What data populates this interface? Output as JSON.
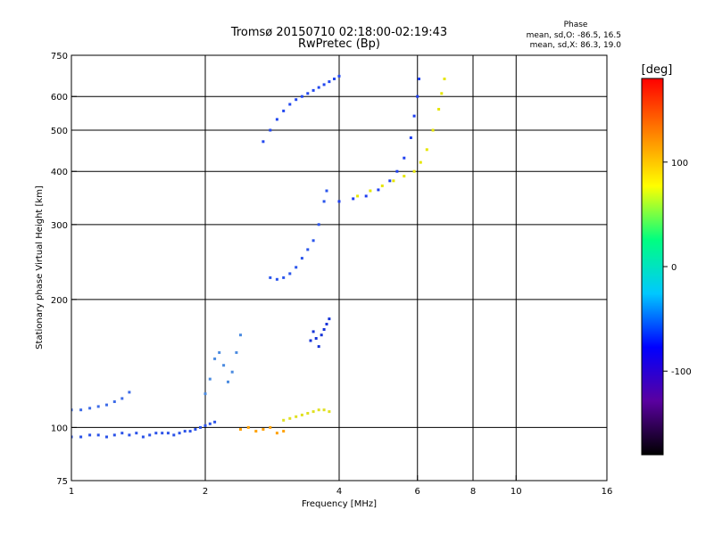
{
  "chart_data": {
    "type": "scatter",
    "title": "Tromsø 20150710 02:18:00-02:19:43",
    "subtitle": "RwPretec (Bp)",
    "stats_header": "Phase",
    "stats_line1": "mean, sd,O: -86.5, 16.5",
    "stats_line2": "mean, sd,X:  86.3, 19.0",
    "xlabel": "Frequency [MHz]",
    "ylabel": "Stationary phase Virtual Height [km]",
    "x_scale": "log",
    "y_scale": "log",
    "xlim": [
      1,
      16
    ],
    "ylim": [
      75,
      750
    ],
    "x_ticks": [
      1,
      2,
      4,
      6,
      8,
      10,
      16
    ],
    "x_tick_labels": [
      "1",
      "2",
      "4",
      "6",
      "8",
      "10",
      "16"
    ],
    "y_ticks": [
      75,
      100,
      200,
      300,
      400,
      500,
      600,
      750
    ],
    "y_tick_labels": [
      "75",
      "100",
      "200",
      "300",
      "400",
      "500",
      "600",
      "750"
    ],
    "grid": true,
    "colorbar": {
      "label": "[deg]",
      "range": [
        -180,
        180
      ],
      "ticks": [
        100,
        0,
        -100
      ],
      "tick_labels": [
        "100",
        "0",
        "-100"
      ],
      "colormap": [
        "#000000",
        "#5a00a0",
        "#0000ff",
        "#00c8ff",
        "#00ff80",
        "#ffff00",
        "#ff8000",
        "#ff0000"
      ]
    },
    "series": [
      {
        "color": "#2a52e8",
        "x": [
          1.0,
          1.05,
          1.1,
          1.15,
          1.2,
          1.25,
          1.3,
          1.35,
          1.4,
          1.45,
          1.5,
          1.55,
          1.6,
          1.65,
          1.7,
          1.75,
          1.8,
          1.85,
          1.9,
          1.95,
          2.0,
          2.05,
          2.1
        ],
        "y": [
          95,
          95,
          96,
          96,
          95,
          96,
          97,
          96,
          97,
          95,
          96,
          97,
          97,
          97,
          96,
          97,
          98,
          98,
          99,
          100,
          101,
          102,
          103
        ]
      },
      {
        "color": "#3d6be8",
        "x": [
          1.0,
          1.05,
          1.1,
          1.15,
          1.2,
          1.25,
          1.3,
          1.35
        ],
        "y": [
          110,
          110,
          111,
          112,
          113,
          115,
          117,
          121
        ]
      },
      {
        "color": "#2248f0",
        "x": [
          2.7,
          2.8,
          2.9,
          3.0,
          3.1,
          3.2,
          3.3,
          3.4,
          3.5,
          3.6,
          3.7,
          3.8,
          3.9,
          4.0
        ],
        "y": [
          470,
          500,
          530,
          555,
          575,
          590,
          600,
          610,
          620,
          630,
          640,
          650,
          660,
          670
        ]
      },
      {
        "color": "#2a55ec",
        "x": [
          2.8,
          2.9,
          3.0,
          3.1,
          3.2,
          3.3,
          3.4,
          3.5,
          3.6,
          3.7,
          3.75
        ],
        "y": [
          225,
          223,
          225,
          230,
          238,
          250,
          262,
          275,
          300,
          340,
          360
        ]
      },
      {
        "color": "#1e3ff0",
        "x": [
          4.0,
          4.3,
          4.6,
          4.9,
          5.2,
          5.4,
          5.6,
          5.8,
          5.9,
          6.0,
          6.05
        ],
        "y": [
          340,
          345,
          350,
          362,
          380,
          400,
          430,
          480,
          540,
          600,
          660
        ]
      },
      {
        "color": "#e6e600",
        "x": [
          4.4,
          4.7,
          5.0,
          5.3,
          5.6,
          5.9,
          6.1,
          6.3,
          6.5,
          6.7,
          6.8,
          6.9
        ],
        "y": [
          350,
          360,
          370,
          380,
          390,
          400,
          420,
          450,
          500,
          560,
          610,
          660
        ]
      },
      {
        "color": "#4a8ae0",
        "x": [
          2.0,
          2.05,
          2.1,
          2.15,
          2.2,
          2.25,
          2.3,
          2.35,
          2.4
        ],
        "y": [
          120,
          130,
          145,
          150,
          140,
          128,
          135,
          150,
          165
        ]
      },
      {
        "color": "#1533d8",
        "x": [
          3.45,
          3.5,
          3.55,
          3.6,
          3.65,
          3.7,
          3.75,
          3.8
        ],
        "y": [
          160,
          168,
          162,
          155,
          165,
          170,
          175,
          180
        ]
      },
      {
        "color": "#e0e020",
        "x": [
          3.0,
          3.1,
          3.2,
          3.3,
          3.4,
          3.5,
          3.6,
          3.7,
          3.8
        ],
        "y": [
          104,
          105,
          106,
          107,
          108,
          109,
          110,
          110,
          109
        ]
      },
      {
        "color": "#ffa000",
        "x": [
          2.4,
          2.5,
          2.6,
          2.7,
          2.8,
          2.9,
          3.0
        ],
        "y": [
          99,
          100,
          98,
          99,
          100,
          97,
          98
        ]
      }
    ]
  }
}
